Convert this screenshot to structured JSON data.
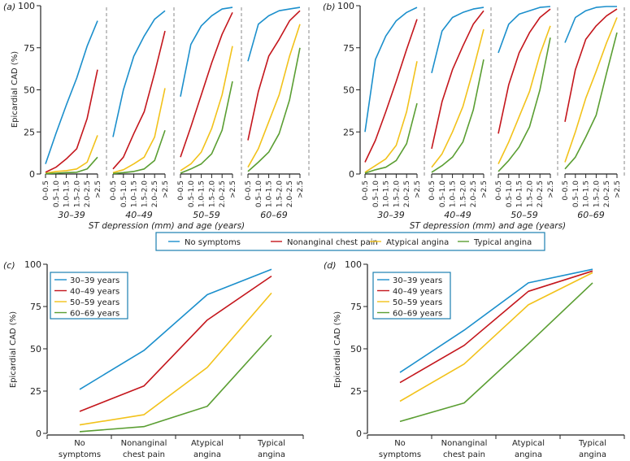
{
  "colors": {
    "blue": "#1b8fcc",
    "red": "#c4161c",
    "yellow": "#f2c21a",
    "green": "#5a9e32",
    "axis": "#222222",
    "legend_border": "#1b7fb0",
    "divider": "#888888"
  },
  "chart_data": [
    {
      "id": "a",
      "panel_label": "(a)",
      "type": "line",
      "ylabel": "Epicardial CAD (%)",
      "xlabel": "ST depression (mm) and age (years)",
      "ylim": [
        0,
        100
      ],
      "yticks": [
        "0",
        "25",
        "50",
        "75",
        "100"
      ],
      "ytick_values": [
        0,
        25,
        50,
        75,
        100
      ],
      "categories": [
        "0–0.5",
        "0.5–1.0",
        "1.0–1.5",
        "1.5–2.0",
        "2.0–2.5",
        ">2.5"
      ],
      "groups": [
        {
          "label": "30–39",
          "series": [
            {
              "name": "No symptoms",
              "color": "blue",
              "values": [
                6,
                24,
                41,
                57,
                76,
                91
              ]
            },
            {
              "name": "Nonanginal chest pain",
              "color": "red",
              "values": [
                1,
                4,
                9,
                15,
                33,
                62
              ]
            },
            {
              "name": "Atypical angina",
              "color": "yellow",
              "values": [
                0.5,
                1.5,
                2,
                3,
                7,
                23
              ]
            },
            {
              "name": "Typical angina",
              "color": "green",
              "values": [
                0.2,
                0.5,
                0.8,
                1,
                3,
                10
              ]
            }
          ]
        },
        {
          "label": "40–49",
          "series": [
            {
              "name": "No symptoms",
              "color": "blue",
              "values": [
                22,
                50,
                70,
                82,
                92,
                97
              ]
            },
            {
              "name": "Nonanginal chest pain",
              "color": "red",
              "values": [
                3,
                10,
                24,
                37,
                60,
                85
              ]
            },
            {
              "name": "Atypical angina",
              "color": "yellow",
              "values": [
                0.8,
                2.5,
                6,
                10,
                22,
                51
              ]
            },
            {
              "name": "Typical angina",
              "color": "green",
              "values": [
                0.3,
                0.8,
                1.5,
                3,
                8,
                26
              ]
            }
          ]
        },
        {
          "label": "50–59",
          "series": [
            {
              "name": "No symptoms",
              "color": "blue",
              "values": [
                46,
                77,
                88,
                94,
                98,
                99
              ]
            },
            {
              "name": "Nonanginal chest pain",
              "color": "red",
              "values": [
                10,
                28,
                47,
                66,
                83,
                96
              ]
            },
            {
              "name": "Atypical angina",
              "color": "yellow",
              "values": [
                2,
                6,
                13,
                27,
                47,
                76
              ]
            },
            {
              "name": "Typical angina",
              "color": "green",
              "values": [
                0.5,
                3,
                6,
                12,
                26,
                55
              ]
            }
          ]
        },
        {
          "label": "60–69",
          "series": [
            {
              "name": "No symptoms",
              "color": "blue",
              "values": [
                67,
                89,
                94,
                97,
                98,
                99
              ]
            },
            {
              "name": "Nonanginal chest pain",
              "color": "red",
              "values": [
                20,
                49,
                70,
                80,
                91,
                97
              ]
            },
            {
              "name": "Atypical angina",
              "color": "yellow",
              "values": [
                4,
                15,
                31,
                47,
                70,
                89
              ]
            },
            {
              "name": "Typical angina",
              "color": "green",
              "values": [
                1.5,
                7,
                13,
                24,
                44,
                75
              ]
            }
          ]
        }
      ]
    },
    {
      "id": "b",
      "panel_label": "(b)",
      "type": "line",
      "ylabel": "",
      "xlabel": "ST depression (mm) and age (years)",
      "ylim": [
        0,
        100
      ],
      "yticks": [
        "0",
        "25",
        "50",
        "75",
        "100"
      ],
      "ytick_values": [
        0,
        25,
        50,
        75,
        100
      ],
      "categories": [
        "0–0.5",
        "0.5–1.0",
        "1.0–1.5",
        "1.5–2.0",
        "2.0–2.5",
        ">2.5"
      ],
      "groups": [
        {
          "label": "30–39",
          "series": [
            {
              "name": "No symptoms",
              "color": "blue",
              "values": [
                25,
                68,
                82,
                91,
                96,
                99
              ]
            },
            {
              "name": "Nonanginal chest pain",
              "color": "red",
              "values": [
                7,
                20,
                37,
                55,
                74,
                92
              ]
            },
            {
              "name": "Atypical angina",
              "color": "yellow",
              "values": [
                1,
                5,
                9,
                17,
                37,
                67
              ]
            },
            {
              "name": "Typical angina",
              "color": "green",
              "values": [
                0.5,
                2.5,
                4,
                8,
                18,
                42
              ]
            }
          ]
        },
        {
          "label": "40–49",
          "series": [
            {
              "name": "No symptoms",
              "color": "blue",
              "values": [
                60,
                85,
                93,
                96,
                98,
                99
              ]
            },
            {
              "name": "Nonanginal chest pain",
              "color": "red",
              "values": [
                15,
                43,
                62,
                76,
                89,
                97
              ]
            },
            {
              "name": "Atypical angina",
              "color": "yellow",
              "values": [
                4,
                12,
                25,
                40,
                62,
                86
              ]
            },
            {
              "name": "Typical angina",
              "color": "green",
              "values": [
                1,
                5,
                10,
                19,
                38,
                68
              ]
            }
          ]
        },
        {
          "label": "50–59",
          "series": [
            {
              "name": "No symptoms",
              "color": "blue",
              "values": [
                72,
                89,
                95,
                97,
                99,
                99.5
              ]
            },
            {
              "name": "Nonanginal chest pain",
              "color": "red",
              "values": [
                24,
                53,
                72,
                84,
                93,
                98
              ]
            },
            {
              "name": "Atypical angina",
              "color": "yellow",
              "values": [
                6,
                19,
                34,
                49,
                71,
                88
              ]
            },
            {
              "name": "Typical angina",
              "color": "green",
              "values": [
                1.5,
                8,
                16,
                28,
                50,
                81
              ]
            }
          ]
        },
        {
          "label": "60–69",
          "series": [
            {
              "name": "No symptoms",
              "color": "blue",
              "values": [
                78,
                93,
                97,
                99,
                99.5,
                99.5
              ]
            },
            {
              "name": "Nonanginal chest pain",
              "color": "red",
              "values": [
                31,
                62,
                80,
                88,
                94,
                98
              ]
            },
            {
              "name": "Atypical angina",
              "color": "yellow",
              "values": [
                7,
                25,
                45,
                61,
                78,
                93
              ]
            },
            {
              "name": "Typical angina",
              "color": "green",
              "values": [
                3,
                10,
                22,
                35,
                60,
                84
              ]
            }
          ]
        }
      ]
    },
    {
      "id": "c",
      "panel_label": "(c)",
      "type": "line",
      "ylabel": "Epicardial CAD (%)",
      "xlabel": "",
      "ylim": [
        0,
        100
      ],
      "yticks": [
        "0",
        "25",
        "50",
        "75",
        "100"
      ],
      "ytick_values": [
        0,
        25,
        50,
        75,
        100
      ],
      "categories": [
        [
          "No",
          "symptoms"
        ],
        [
          "Nonanginal",
          "chest pain"
        ],
        [
          "Atypical",
          "angina"
        ],
        [
          "Typical",
          "angina"
        ]
      ],
      "legend": "top-left",
      "series": [
        {
          "name": "30–39 years",
          "color": "blue",
          "values": [
            26,
            49,
            82,
            97
          ]
        },
        {
          "name": "40–49 years",
          "color": "red",
          "values": [
            13,
            28,
            67,
            93
          ]
        },
        {
          "name": "50–59 years",
          "color": "yellow",
          "values": [
            5,
            11,
            39,
            83
          ]
        },
        {
          "name": "60–69 years",
          "color": "green",
          "values": [
            1,
            4,
            16,
            58
          ]
        }
      ]
    },
    {
      "id": "d",
      "panel_label": "(d)",
      "type": "line",
      "ylabel": "Epicardial CAD (%)",
      "xlabel": "",
      "ylim": [
        0,
        100
      ],
      "yticks": [
        "0",
        "25",
        "50",
        "75",
        "100"
      ],
      "ytick_values": [
        0,
        25,
        50,
        75,
        100
      ],
      "categories": [
        [
          "No",
          "symptoms"
        ],
        [
          "Nonanginal",
          "chest pain"
        ],
        [
          "Atypical",
          "angina"
        ],
        [
          "Typical",
          "angina"
        ]
      ],
      "legend": "top-left",
      "series": [
        {
          "name": "30–39 years",
          "color": "blue",
          "values": [
            36,
            61,
            89,
            97
          ]
        },
        {
          "name": "40–49 years",
          "color": "red",
          "values": [
            30,
            52,
            84,
            96
          ]
        },
        {
          "name": "50–59 years",
          "color": "yellow",
          "values": [
            19,
            41,
            76,
            95
          ]
        },
        {
          "name": "60–69 years",
          "color": "green",
          "values": [
            7,
            18,
            53,
            89
          ]
        }
      ]
    }
  ],
  "shared_legend": {
    "items": [
      {
        "name": "No symptoms",
        "color": "blue"
      },
      {
        "name": "Nonanginal chest pain",
        "color": "red"
      },
      {
        "name": "Atypical angina",
        "color": "yellow"
      },
      {
        "name": "Typical angina",
        "color": "green"
      }
    ]
  }
}
